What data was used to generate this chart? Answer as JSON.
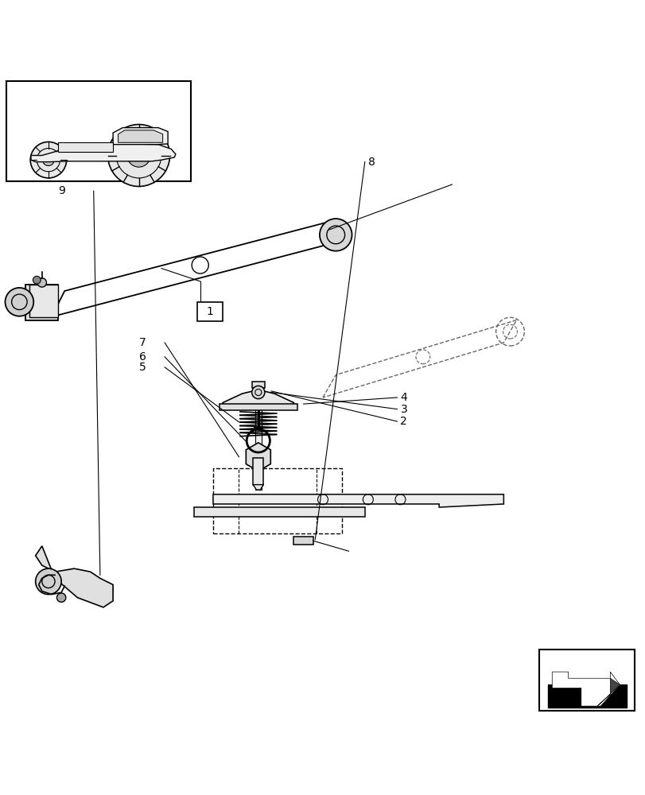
{
  "background_color": "#ffffff",
  "line_color": "#000000",
  "dashed_color": "#555555",
  "label_color": "#000000",
  "fig_width": 8.12,
  "fig_height": 10.0,
  "dpi": 100
}
